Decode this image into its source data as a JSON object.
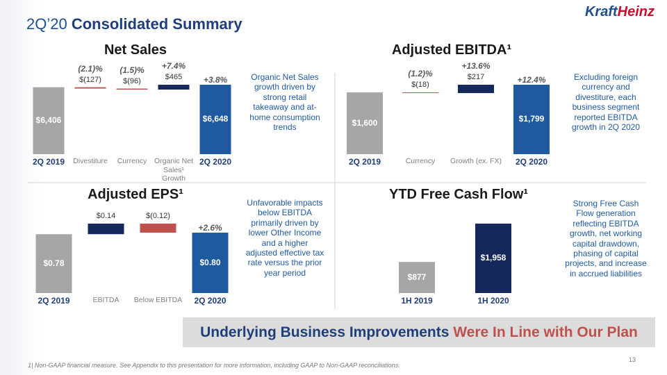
{
  "header": {
    "period": "2Q’20",
    "title": "Consolidated Summary"
  },
  "logo": {
    "brand_a": "Kraft",
    "brand_b": "Heinz"
  },
  "chart_data": [
    {
      "type": "waterfall",
      "title": "Net Sales",
      "categories": [
        "2Q 2019",
        "Divestiture",
        "Currency",
        "Organic Net Sales¹ Growth",
        "2Q 2020"
      ],
      "values": [
        6406,
        -127,
        -96,
        465,
        6648
      ],
      "value_labels": [
        "$6,406",
        "$(127)",
        "$(96)",
        "$465",
        "$6,648"
      ],
      "annotations": [
        null,
        "(2.1)%",
        "(1.5)%",
        "+7.4%",
        "+3.8%"
      ],
      "colors": [
        "#a6a6a6",
        "#c0504d",
        "#c0504d",
        "#14285a",
        "#1f5aa0"
      ],
      "note": "Organic Net Sales growth driven by strong retail takeaway and at-home consumption trends"
    },
    {
      "type": "waterfall",
      "title": "Adjusted EBITDA¹",
      "categories": [
        "2Q 2019",
        "Currency",
        "Growth (ex. FX)",
        "2Q 2020"
      ],
      "values": [
        1600,
        -18,
        217,
        1799
      ],
      "value_labels": [
        "$1,600",
        "$(18)",
        "$217",
        "$1,799"
      ],
      "annotations": [
        null,
        "(1.2)%",
        "+13.6%",
        "+12.4%"
      ],
      "colors": [
        "#a6a6a6",
        "#c0504d",
        "#14285a",
        "#1f5aa0"
      ],
      "note": "Excluding foreign currency and divestiture, each business segment reported EBITDA growth in 2Q 2020"
    },
    {
      "type": "waterfall",
      "title": "Adjusted EPS¹",
      "categories": [
        "2Q 2019",
        "EBITDA",
        "Below EBITDA",
        "2Q 2020"
      ],
      "values": [
        0.78,
        0.14,
        -0.12,
        0.8
      ],
      "value_labels": [
        "$0.78",
        "$0.14",
        "$(0.12)",
        "$0.80"
      ],
      "annotations": [
        null,
        null,
        null,
        "+2.6%"
      ],
      "colors": [
        "#a6a6a6",
        "#14285a",
        "#c0504d",
        "#1f5aa0"
      ],
      "note": "Unfavorable impacts below EBITDA primarily driven by lower Other Income and a higher adjusted effective tax rate versus the prior year period"
    },
    {
      "type": "bar",
      "title": "YTD Free Cash Flow¹",
      "categories": [
        "1H 2019",
        "1H 2020"
      ],
      "values": [
        877,
        1958
      ],
      "value_labels": [
        "$877",
        "$1,958"
      ],
      "colors": [
        "#a6a6a6",
        "#14285a"
      ],
      "note": "Strong Free Cash Flow generation reflecting EBITDA growth, net working capital drawdown, phasing of capital projects, and increase in accrued liabilities"
    }
  ],
  "banner": {
    "lead": "Underlying Business Improvements",
    "tail": "Were In Line with Our Plan"
  },
  "footnote": "1| Non-GAAP financial measure. See Appendix to this presentation for more information, including GAAP to Non-GAAP reconciliations.",
  "page_number": "13"
}
